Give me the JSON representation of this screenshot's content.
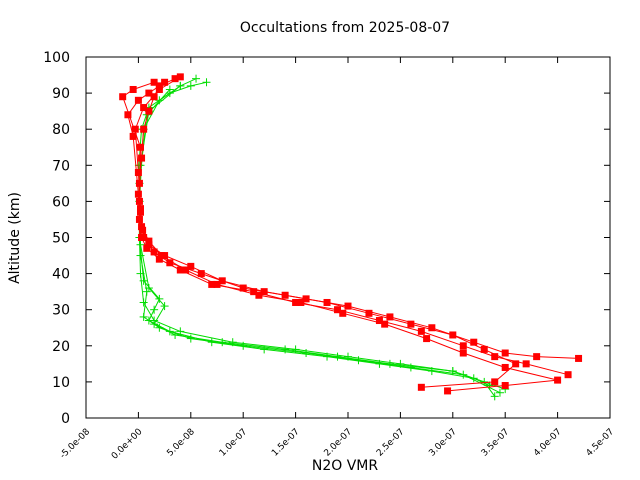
{
  "chart_data": {
    "type": "scatter",
    "title": "Occultations from 2025-08-07",
    "xlabel": "N2O VMR",
    "ylabel": "Altitude (km)",
    "xlim": [
      -5e-08,
      4.5e-07
    ],
    "ylim": [
      0,
      100
    ],
    "x_ticks": [
      "-5.0e-08",
      "0.0e+00",
      "5.0e-08",
      "1.0e-07",
      "1.5e-07",
      "2.0e-07",
      "2.5e-07",
      "3.0e-07",
      "3.5e-07",
      "4.0e-07",
      "4.5e-07"
    ],
    "y_ticks": [
      "0",
      "10",
      "20",
      "30",
      "40",
      "50",
      "60",
      "70",
      "80",
      "90",
      "100"
    ],
    "grid": false,
    "legend": "none",
    "series": [
      {
        "color": "#00dd00",
        "marker": "plus",
        "profiles": [
          {
            "x": [
              3.4e-07,
              3.3e-07,
              3e-07,
              2.5e-07,
              2e-07,
              1.5e-07,
              9e-08,
              4e-08,
              1.5e-08,
              5e-09,
              2e-09,
              1e-09,
              1e-09,
              5e-10,
              3e-09,
              1e-08,
              3e-08,
              5e-08,
              6.5e-08
            ],
            "y": [
              6,
              10,
              13,
              15,
              17,
              19,
              21,
              24,
              27,
              32,
              40,
              50,
              60,
              70,
              80,
              86,
              90,
              92,
              93
            ]
          },
          {
            "x": [
              3.35e-07,
              3.2e-07,
              2.8e-07,
              2.3e-07,
              1.8e-07,
              1.2e-07,
              7e-08,
              3e-08,
              1e-08,
              1.5e-08,
              2e-08,
              5e-09,
              1e-09,
              2e-09,
              1e-08,
              4e-08
            ],
            "y": [
              9,
              11,
              13,
              15,
              17,
              19,
              21,
              24,
              27,
              30,
              33,
              38,
              50,
              70,
              85,
              92
            ]
          },
          {
            "x": [
              3.45e-07,
              3.1e-07,
              2.6e-07,
              2.1e-07,
              1.6e-07,
              1e-07,
              5e-08,
              2e-08,
              5e-09,
              8e-09,
              2e-09,
              1e-09,
              5e-09,
              2e-08,
              4e-08,
              5.5e-08
            ],
            "y": [
              7,
              12,
              14,
              16,
              18,
              20,
              22,
              25,
              28,
              35,
              45,
              60,
              80,
              88,
              92,
              94
            ]
          },
          {
            "x": [
              3.5e-07,
              3e-07,
              2.4e-07,
              1.9e-07,
              1.4e-07,
              8e-08,
              3.5e-08,
              1.5e-08,
              2.5e-08,
              1e-08,
              2e-09,
              1e-09,
              8e-09,
              3e-08
            ],
            "y": [
              8,
              13,
              15,
              17,
              19,
              21,
              23,
              26,
              31,
              36,
              48,
              65,
              84,
              91
            ]
          }
        ]
      },
      {
        "color": "#ff0000",
        "marker": "square",
        "profiles": [
          {
            "x": [
              4.2e-07,
              3.8e-07,
              3.5e-07,
              3.2e-07,
              2.8e-07,
              2.4e-07,
              2e-07,
              1.6e-07,
              1.2e-07,
              8e-08,
              5e-08,
              2.5e-08,
              1e-08,
              4e-09,
              2e-09,
              1e-09,
              3e-09,
              5e-09,
              1e-08,
              1.5e-08,
              2e-08,
              3.5e-08
            ],
            "y": [
              16.5,
              17,
              18,
              21,
              25,
              28,
              31,
              33,
              35,
              38,
              42,
              45,
              48,
              52,
              58,
              65,
              72,
              80,
              85,
              89,
              92,
              94
            ]
          },
          {
            "x": [
              4.1e-07,
              3.7e-07,
              3.4e-07,
              3.1e-07,
              2.7e-07,
              2.3e-07,
              1.9e-07,
              1.5e-07,
              1.1e-07,
              7e-08,
              4e-08,
              2e-08,
              8e-09,
              3e-09,
              1e-09,
              0.0,
              -5e-09,
              -1e-08,
              0.0,
              1e-08,
              2.5e-08
            ],
            "y": [
              12,
              15,
              17,
              20,
              24,
              27,
              30,
              32,
              35,
              37,
              41,
              44,
              47,
              50,
              55,
              62,
              78,
              84,
              88,
              90,
              93
            ]
          },
          {
            "x": [
              2.7e-07,
              3.4e-07,
              3.6e-07,
              3.3e-07,
              3e-07,
              2.6e-07,
              2.2e-07,
              1.8e-07,
              1.4e-07,
              1e-07,
              6e-08,
              3e-08,
              1.5e-08,
              5e-09,
              2e-09,
              0.0,
              -3e-09,
              5e-09,
              2e-08,
              4e-08
            ],
            "y": [
              8.5,
              10,
              15,
              19,
              23,
              26,
              29,
              32,
              34,
              36,
              40,
              43,
              46,
              50,
              57,
              68,
              80,
              86,
              91,
              94.5
            ]
          },
          {
            "x": [
              2.95e-07,
              3.5e-07,
              4e-07,
              3.5e-07,
              3.1e-07,
              2.75e-07,
              2.35e-07,
              1.95e-07,
              1.55e-07,
              1.15e-07,
              7.5e-08,
              4.5e-08,
              2.2e-08,
              1e-08,
              3e-09,
              1e-09,
              2e-09,
              -1.5e-08,
              -5e-09,
              1.5e-08
            ],
            "y": [
              7.5,
              9,
              10.5,
              14,
              18,
              22,
              26,
              29,
              32,
              34,
              37,
              41,
              45,
              49,
              53,
              60,
              75,
              89,
              91,
              93
            ]
          }
        ]
      }
    ]
  }
}
